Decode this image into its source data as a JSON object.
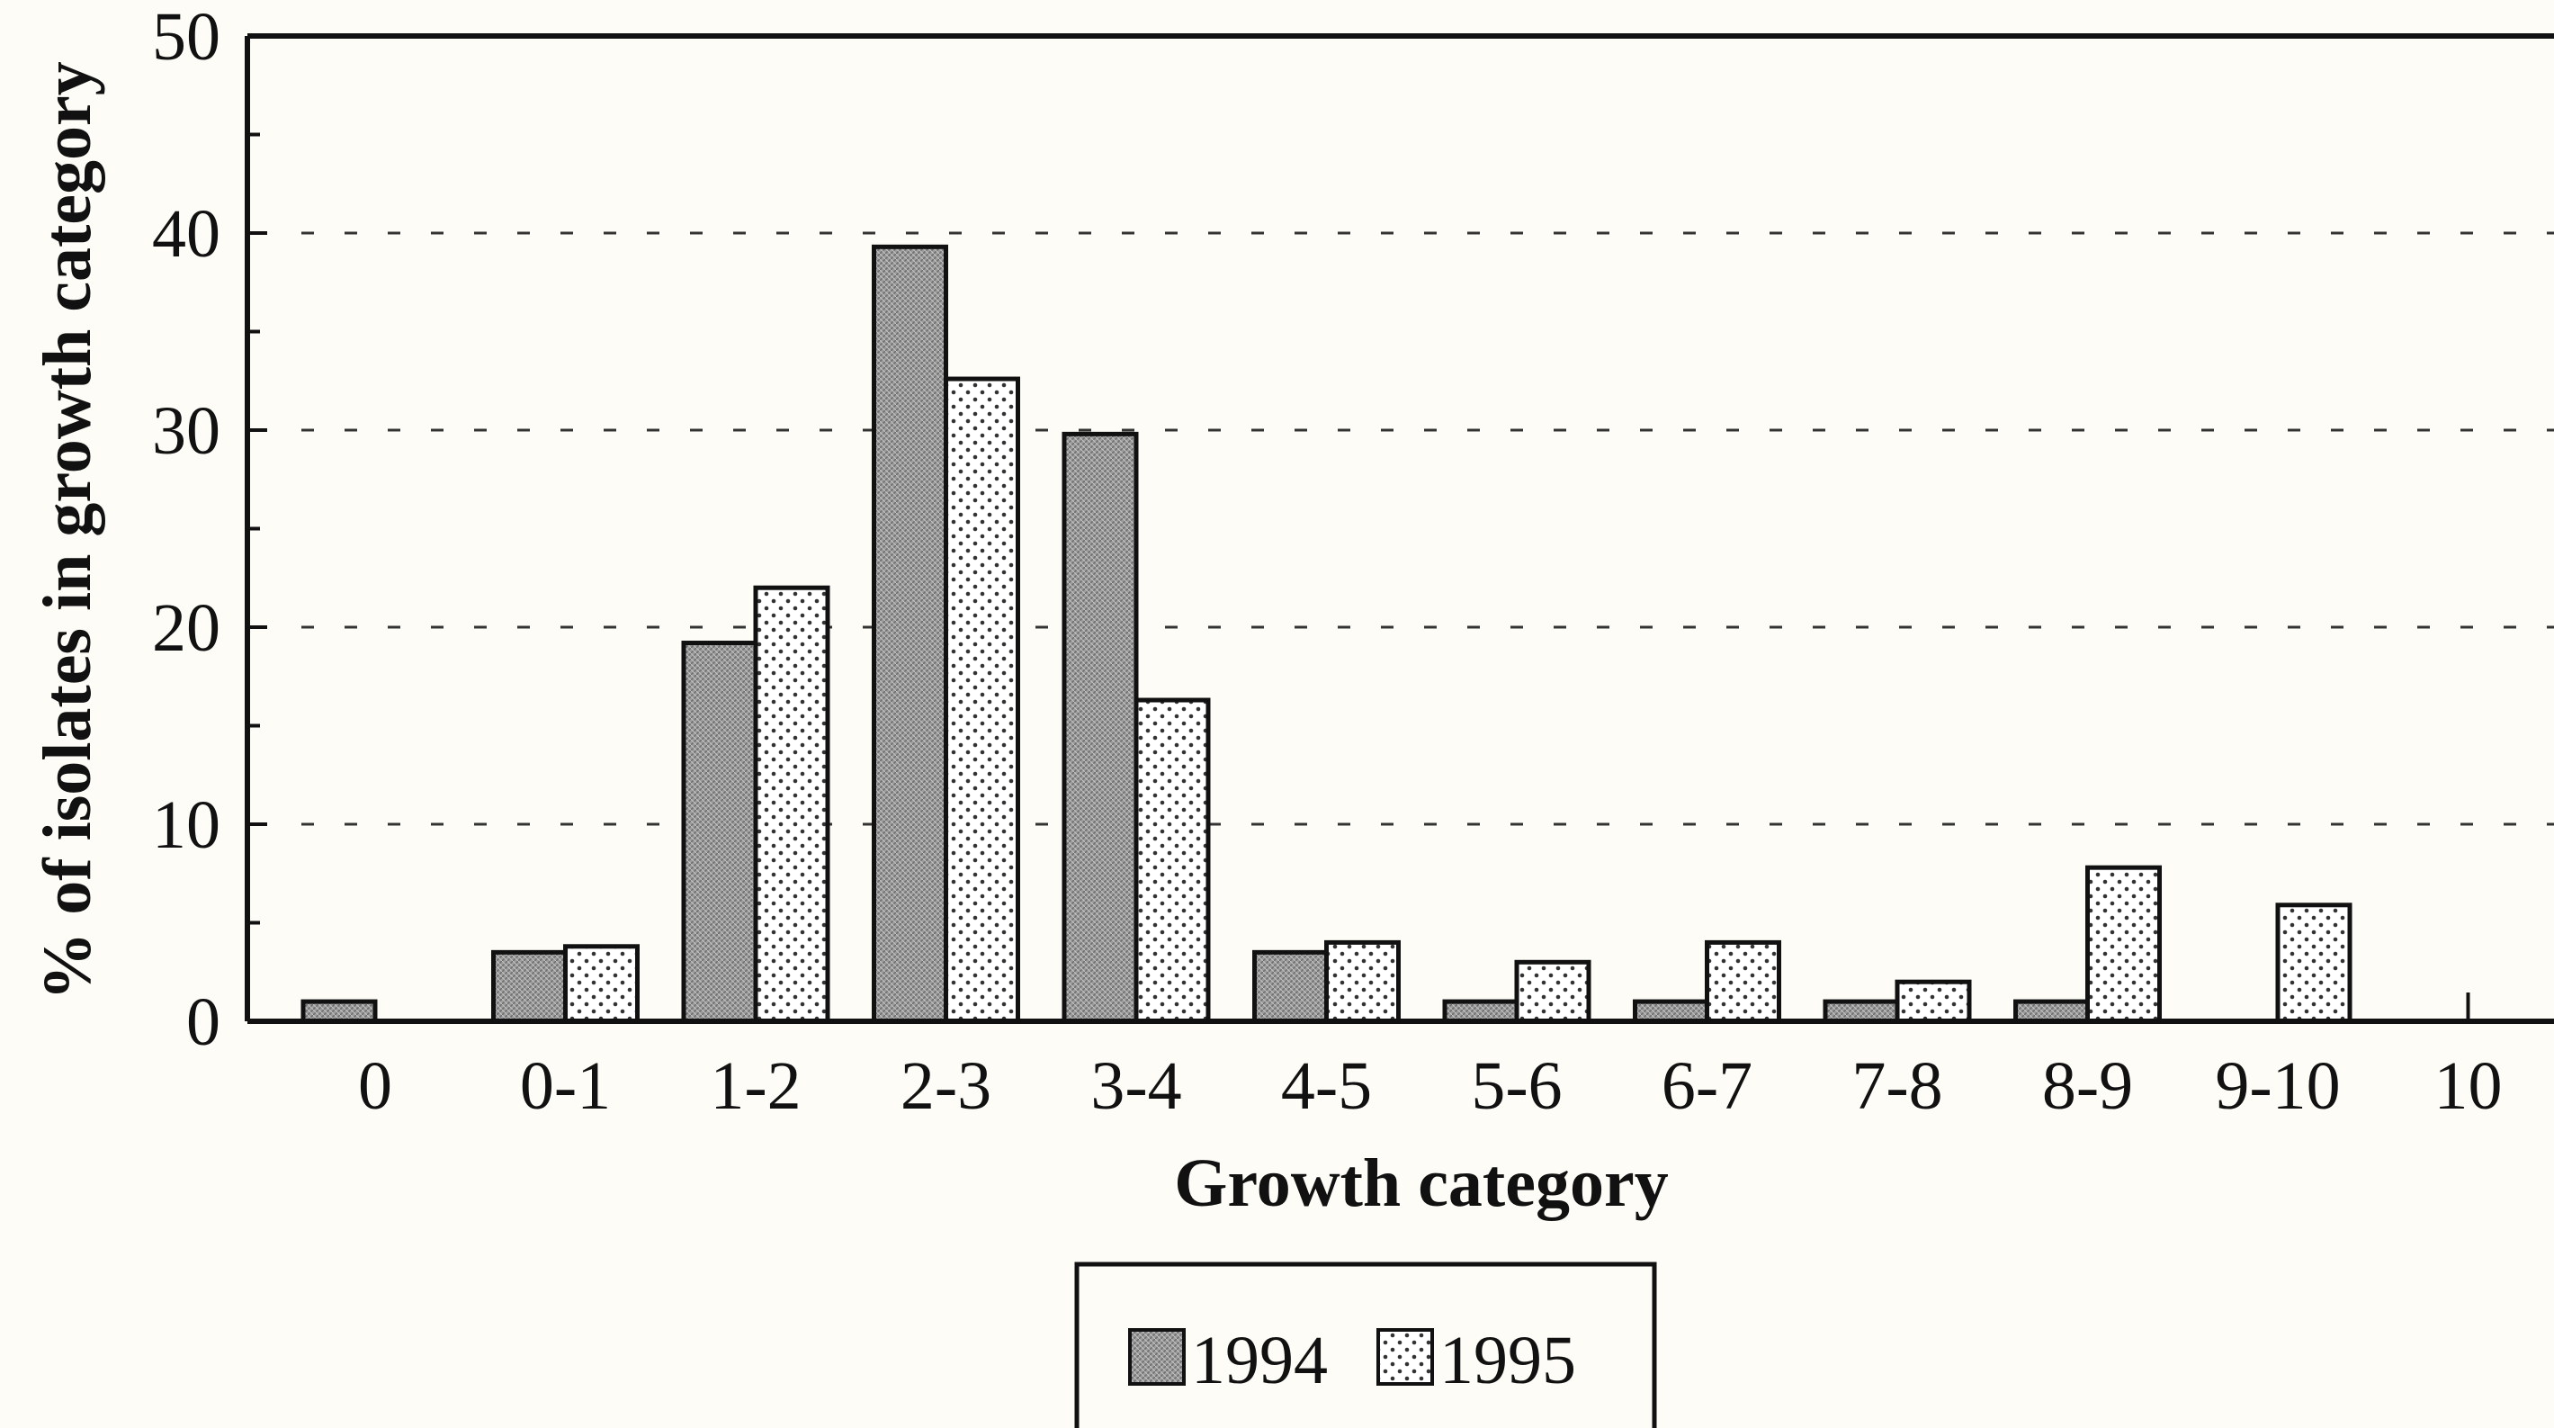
{
  "chart_data": {
    "type": "bar",
    "title": "",
    "xlabel": "Growth category",
    "ylabel": "% of isolates in growth category",
    "categories": [
      "0",
      "0-1",
      "1-2",
      "2-3",
      "3-4",
      "4-5",
      "5-6",
      "6-7",
      "7-8",
      "8-9",
      "9-10",
      "10"
    ],
    "series": [
      {
        "name": "1994",
        "values": [
          1,
          3.5,
          19.2,
          39.3,
          29.8,
          3.5,
          1,
          1,
          1,
          1,
          0,
          0
        ],
        "pattern": "crosshatch-gray"
      },
      {
        "name": "1995",
        "values": [
          0,
          3.8,
          22,
          32.6,
          16.3,
          4,
          3,
          4,
          2,
          7.8,
          5.9,
          0
        ],
        "pattern": "dotted-white"
      }
    ],
    "ylim": [
      0,
      50
    ],
    "yticks": [
      0,
      10,
      20,
      30,
      40,
      50
    ],
    "grid": "dashed horizontal",
    "legend_position": "bottom-center",
    "colors": {
      "series_1994": "#a9a9a9",
      "series_1995": "#ffffff",
      "ink": "#111111",
      "background": "#fdfcf7"
    }
  }
}
